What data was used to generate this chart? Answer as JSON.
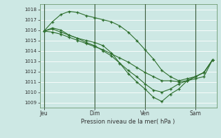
{
  "background_color": "#cde8e4",
  "grid_color": "#b8d8d4",
  "line_color": "#2d6e2d",
  "marker_color": "#2d6e2d",
  "xlabel_text": "Pression niveau de la mer( hPa )",
  "x_tick_labels": [
    "Jeu",
    "Dim",
    "Ven",
    "Sam"
  ],
  "x_tick_positions": [
    0,
    36,
    72,
    108
  ],
  "ylim": [
    1008.5,
    1018.5
  ],
  "yticks": [
    1009,
    1010,
    1011,
    1012,
    1013,
    1014,
    1015,
    1016,
    1017,
    1018
  ],
  "series": [
    {
      "x": [
        0,
        6,
        12,
        18,
        24,
        30,
        36,
        42,
        48,
        54,
        60,
        66,
        72,
        78,
        84,
        90,
        96,
        102,
        108,
        114,
        120
      ],
      "y": [
        1015.9,
        1016.8,
        1017.5,
        1017.8,
        1017.7,
        1017.4,
        1017.2,
        1017.0,
        1016.8,
        1016.4,
        1015.8,
        1015.0,
        1014.1,
        1013.2,
        1012.1,
        1011.5,
        1011.1,
        1011.3,
        1011.5,
        1011.9,
        1013.1
      ]
    },
    {
      "x": [
        0,
        6,
        12,
        18,
        24,
        30,
        36,
        42,
        48,
        54,
        60,
        66,
        72,
        78,
        84,
        90,
        96,
        102,
        108,
        114,
        120
      ],
      "y": [
        1015.9,
        1016.2,
        1016.0,
        1015.5,
        1015.2,
        1015.0,
        1014.8,
        1014.5,
        1013.8,
        1012.8,
        1011.8,
        1011.0,
        1010.3,
        1009.5,
        1009.1,
        1009.8,
        1010.3,
        1011.1,
        1011.5,
        1011.9,
        1013.1
      ]
    },
    {
      "x": [
        0,
        6,
        12,
        18,
        24,
        30,
        36,
        42,
        48,
        54,
        60,
        66,
        72,
        78,
        84,
        90,
        96,
        102,
        108,
        114,
        120
      ],
      "y": [
        1015.9,
        1016.1,
        1015.8,
        1015.5,
        1015.2,
        1014.8,
        1014.5,
        1014.0,
        1013.5,
        1012.8,
        1012.1,
        1011.5,
        1010.8,
        1010.2,
        1010.0,
        1010.3,
        1010.8,
        1011.1,
        1011.5,
        1011.9,
        1013.1
      ]
    },
    {
      "x": [
        0,
        6,
        12,
        18,
        24,
        30,
        36,
        42,
        48,
        54,
        60,
        66,
        72,
        78,
        84,
        90,
        96,
        102,
        108,
        114,
        120
      ],
      "y": [
        1015.9,
        1015.8,
        1015.6,
        1015.3,
        1015.0,
        1014.7,
        1014.4,
        1014.1,
        1013.7,
        1013.3,
        1012.9,
        1012.4,
        1011.9,
        1011.5,
        1011.1,
        1011.1,
        1011.0,
        1011.1,
        1011.3,
        1011.5,
        1013.1
      ]
    }
  ],
  "vlines_x": [
    0,
    36,
    72,
    108
  ],
  "xlim": [
    -3,
    123
  ]
}
